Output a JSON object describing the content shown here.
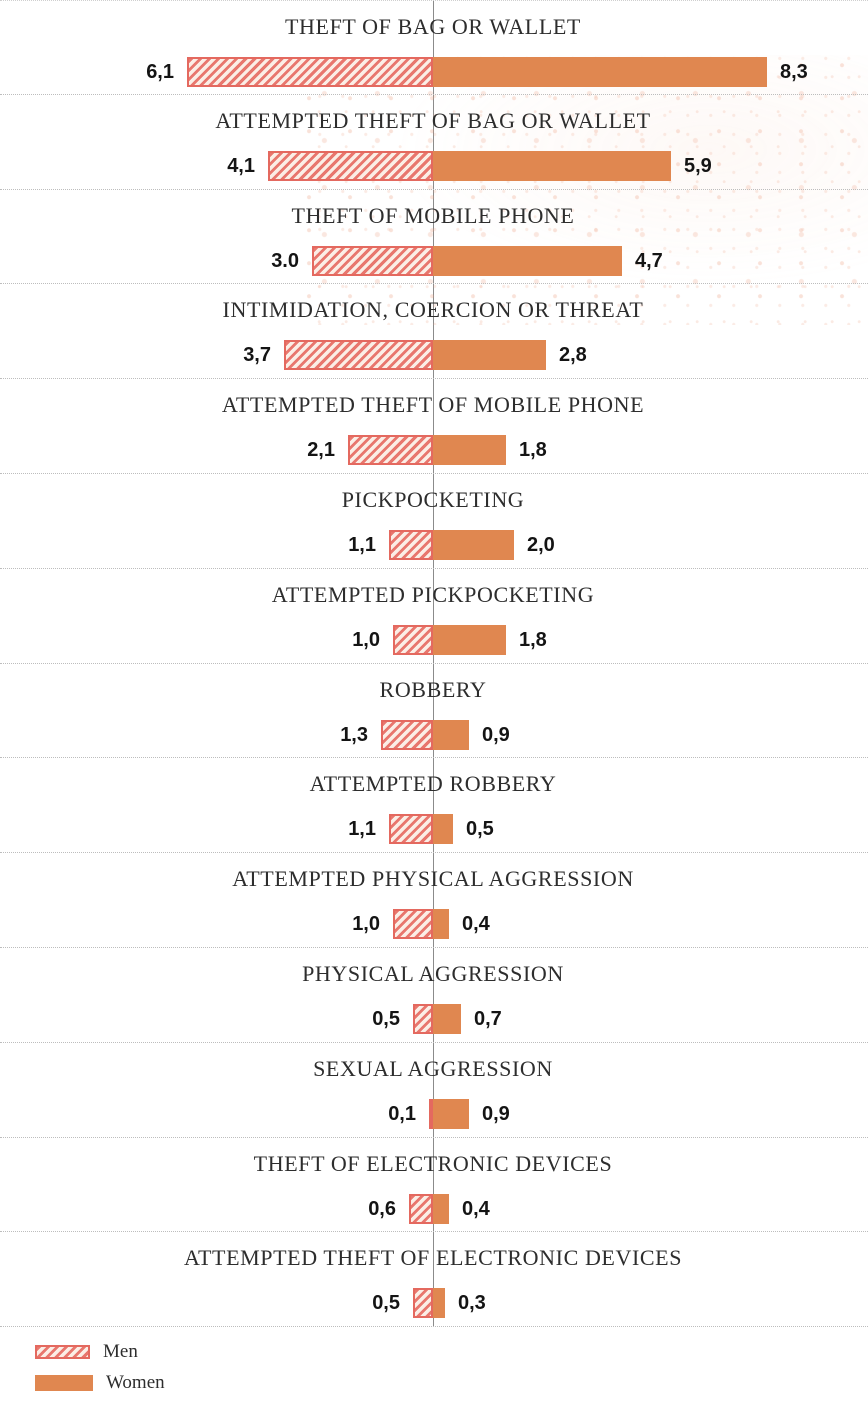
{
  "chart_data": {
    "type": "bar",
    "subtype": "diverging-horizontal-tornado",
    "title": "",
    "xlabel": "",
    "ylabel": "",
    "orientation": "bars diverge left (Men) and right (Women) from a central vertical axis",
    "axis": {
      "center_value": 0,
      "grid": "dotted horizontal separators between categories",
      "value_range_per_side": [
        0,
        8.5
      ]
    },
    "legend_position": "bottom-left",
    "categories": [
      "THEFT OF BAG OR WALLET",
      "ATTEMPTED THEFT OF BAG OR WALLET",
      "THEFT OF MOBILE PHONE",
      "INTIMIDATION, COERCION OR THREAT",
      "ATTEMPTED THEFT OF MOBILE PHONE",
      "PICKPOCKETING",
      "ATTEMPTED PICKPOCKETING",
      "ROBBERY",
      "ATTEMPTED ROBBERY",
      "ATTEMPTED PHYSICAL AGGRESSION",
      "PHYSICAL AGGRESSION",
      "SEXUAL AGGRESSION",
      "THEFT OF ELECTRONIC DEVICES",
      "ATTEMPTED THEFT OF ELECTRONIC DEVICES"
    ],
    "series": [
      {
        "name": "Men",
        "side": "left",
        "style": "hatched",
        "stripe_color": "#e8776e",
        "border_color": "#e4695f",
        "background_color": "#fbeee6",
        "values": [
          6.1,
          4.1,
          3.0,
          3.7,
          2.1,
          1.1,
          1.0,
          1.3,
          1.1,
          1.0,
          0.5,
          0.1,
          0.6,
          0.5
        ],
        "display": [
          "6,1",
          "4,1",
          "3.0",
          "3,7",
          "2,1",
          "1,1",
          "1,0",
          "1,3",
          "1,1",
          "1,0",
          "0,5",
          "0,1",
          "0,6",
          "0,5"
        ]
      },
      {
        "name": "Women",
        "side": "right",
        "style": "solid",
        "color": "#e08750",
        "values": [
          8.3,
          5.9,
          4.7,
          2.8,
          1.8,
          2.0,
          1.8,
          0.9,
          0.5,
          0.4,
          0.7,
          0.9,
          0.4,
          0.3
        ],
        "display": [
          "8,3",
          "5,9",
          "4,7",
          "2,8",
          "1,8",
          "2,0",
          "1,8",
          "0,9",
          "0,5",
          "0,4",
          "0,7",
          "0,9",
          "0,4",
          "0,3"
        ]
      }
    ],
    "legend": {
      "items": [
        {
          "label": "Men",
          "swatch": "hatched"
        },
        {
          "label": "Women",
          "swatch": "solid"
        }
      ]
    }
  },
  "colors": {
    "women_bar": "#e08750",
    "men_stripe": "#e8776e",
    "men_border": "#e4695f",
    "men_background": "#fbeee6",
    "axis_line": "#8b8b8b",
    "separator": "#bdbdbd",
    "category_text": "#2d2d2d",
    "value_text": "#141414",
    "speckle": "#eca082",
    "background": "#ffffff"
  }
}
